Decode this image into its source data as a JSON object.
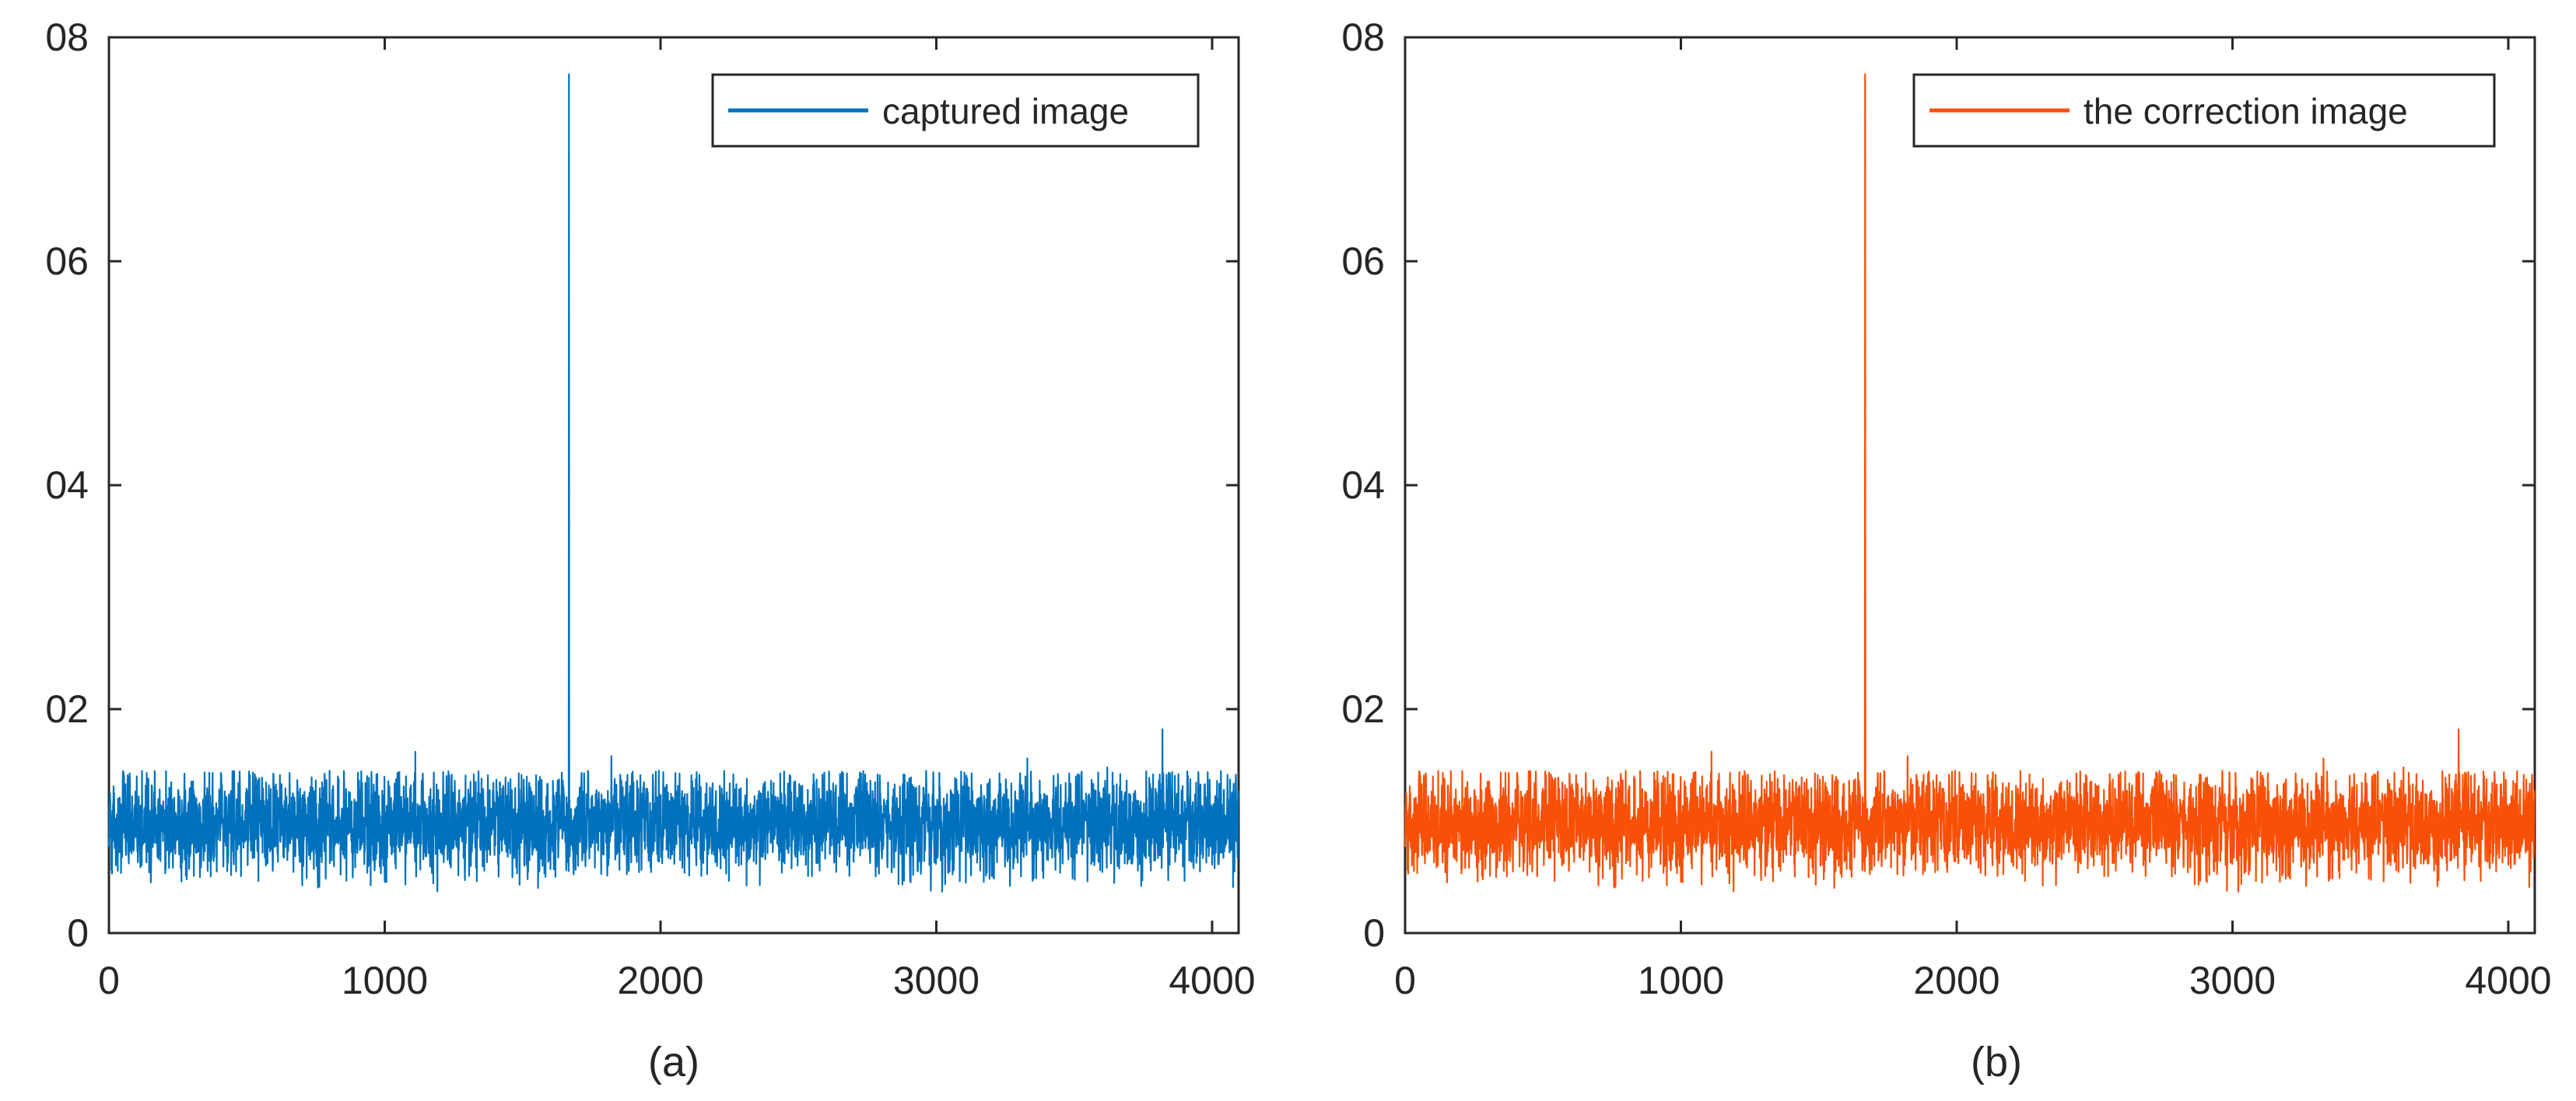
{
  "chart_data": [
    {
      "type": "line",
      "caption": "(a)",
      "xlim": [
        0,
        4096
      ],
      "ylim": [
        0,
        0.08
      ],
      "xticks": [
        0,
        1000,
        2000,
        3000,
        4000
      ],
      "xtick_labels": [
        "0",
        "1000",
        "2000",
        "3000",
        "4000"
      ],
      "yticks": [
        0,
        0.02,
        0.04,
        0.06,
        0.08
      ],
      "ytick_labels": [
        "0",
        "02",
        "04",
        "06",
        "08"
      ],
      "grid": false,
      "legend_position": "top-right",
      "series": [
        {
          "name": "captured image",
          "color": "#0072BD",
          "n_points": 4096,
          "noise_center": 0.0098,
          "noise_min": 0.0036,
          "noise_max": 0.0145,
          "peaks": [
            {
              "x": 1668,
              "y": 0.0767
            },
            {
              "x": 1111,
              "y": 0.0162
            },
            {
              "x": 1822,
              "y": 0.0158
            },
            {
              "x": 3820,
              "y": 0.0182
            },
            {
              "x": 3330,
              "y": 0.0156
            },
            {
              "x": 3620,
              "y": 0.0148
            }
          ]
        }
      ]
    },
    {
      "type": "line",
      "caption": "(b)",
      "xlim": [
        0,
        4096
      ],
      "ylim": [
        0,
        0.08
      ],
      "xticks": [
        0,
        1000,
        2000,
        3000,
        4000
      ],
      "xtick_labels": [
        "0",
        "1000",
        "2000",
        "3000",
        "4000"
      ],
      "yticks": [
        0,
        0.02,
        0.04,
        0.06,
        0.08
      ],
      "ytick_labels": [
        "0",
        "02",
        "04",
        "06",
        "08"
      ],
      "grid": false,
      "legend_position": "top-right",
      "series": [
        {
          "name": "the correction image",
          "color": "#F95007",
          "n_points": 4096,
          "noise_center": 0.0098,
          "noise_min": 0.0036,
          "noise_max": 0.0145,
          "peaks": [
            {
              "x": 1668,
              "y": 0.0767
            },
            {
              "x": 1111,
              "y": 0.0162
            },
            {
              "x": 1822,
              "y": 0.0158
            },
            {
              "x": 3820,
              "y": 0.0182
            },
            {
              "x": 3330,
              "y": 0.0156
            },
            {
              "x": 3620,
              "y": 0.0148
            }
          ]
        }
      ]
    }
  ]
}
